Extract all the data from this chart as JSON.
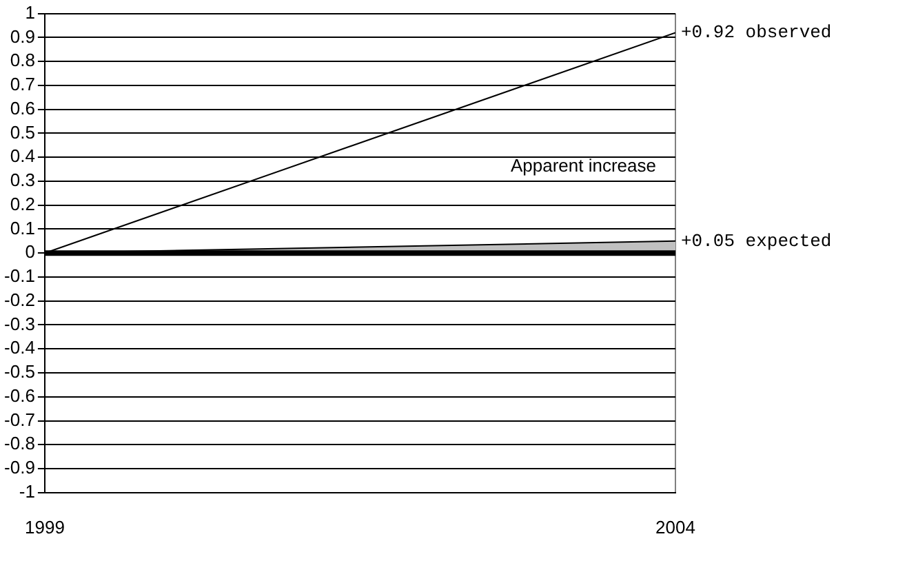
{
  "chart_data": {
    "type": "line",
    "x": [
      1999,
      2004
    ],
    "xlim": [
      1999,
      2004
    ],
    "xticks": [
      1999,
      2004
    ],
    "ylim": [
      -1,
      1
    ],
    "yticks": [
      -1,
      -0.9,
      -0.8,
      -0.7,
      -0.6,
      -0.5,
      -0.4,
      -0.3,
      -0.2,
      -0.1,
      0,
      0.1,
      0.2,
      0.3,
      0.4,
      0.5,
      0.6,
      0.7,
      0.8,
      0.9,
      1
    ],
    "series": [
      {
        "type": "line",
        "color": "#000000",
        "values": [
          0,
          0.92
        ]
      },
      {
        "type": "area",
        "color": "#c0c0c0",
        "values": [
          0,
          0.05
        ]
      }
    ],
    "ref_lines": [
      {
        "axis": "y",
        "value": 0,
        "color": "#000000"
      }
    ],
    "annotations": [
      {
        "text": "+0.92 observed",
        "x": 2004,
        "y": 0.92
      },
      {
        "text": "+0.05 expected",
        "x": 2004,
        "y": 0.05
      },
      "Apparent increase"
    ],
    "grid": true,
    "legend": false,
    "marker": "none"
  }
}
